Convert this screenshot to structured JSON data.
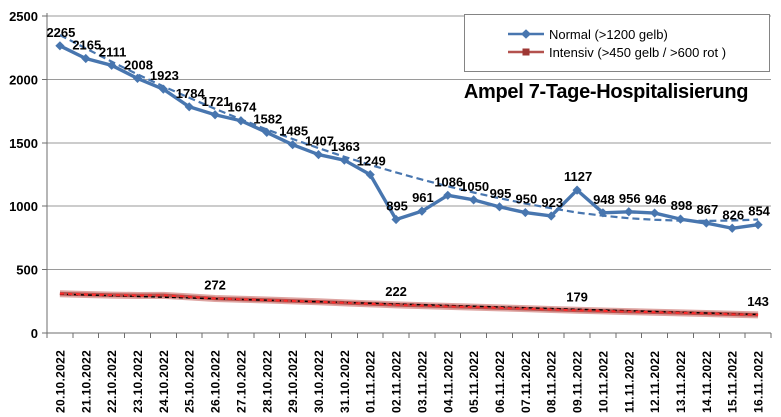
{
  "title": "Ampel 7-Tage-Hospitalisierung",
  "legend": {
    "items": [
      {
        "label": "Normal (>1200 gelb)"
      },
      {
        "label": "Intensiv (>450 gelb / >600 rot )"
      }
    ]
  },
  "chart_data": {
    "type": "line",
    "title": "Ampel 7-Tage-Hospitalisierung",
    "grid": true,
    "legend_position": "top-right",
    "ylim": [
      0,
      2500
    ],
    "ytick_interval": 500,
    "ytick_labels": [
      "0",
      "500",
      "1000",
      "1500",
      "2000",
      "2500"
    ],
    "categories": [
      "20.10.2022",
      "21.10.2022",
      "22.10.2022",
      "23.10.2022",
      "24.10.2022",
      "25.10.2022",
      "26.10.2022",
      "27.10.2022",
      "28.10.2022",
      "29.10.2022",
      "30.10.2022",
      "31.10.2022",
      "01.11.2022",
      "02.11.2022",
      "03.11.2022",
      "04.11.2022",
      "05.11.2022",
      "06.11.2022",
      "07.11.2022",
      "08.11.2022",
      "09.11.2022",
      "10.11.2022",
      "11.11.2022",
      "12.11.2022",
      "13.11.2022",
      "14.11.2022",
      "15.11.2022",
      "16.11.2022"
    ],
    "series": [
      {
        "name": "Normal (>1200 gelb)",
        "color": "#4876AF",
        "marker": "diamond",
        "marker_color": "#4876AF",
        "values": [
          2265,
          2165,
          2111,
          2008,
          1923,
          1784,
          1721,
          1674,
          1582,
          1485,
          1407,
          1363,
          1249,
          895,
          961,
          1086,
          1050,
          995,
          950,
          923,
          1127,
          948,
          956,
          946,
          898,
          867,
          826,
          854
        ],
        "point_labels": [
          2265,
          2165,
          2111,
          2008,
          1923,
          1784,
          1721,
          1674,
          1582,
          1485,
          1407,
          1363,
          1249,
          895,
          961,
          1086,
          1050,
          995,
          950,
          923,
          1127,
          948,
          956,
          946,
          898,
          867,
          826,
          854
        ]
      },
      {
        "name": "Intensiv (>450 gelb / >600 rot )",
        "color": "#B4524E",
        "marker": "square",
        "marker_color": "#9E3734",
        "values_note": "only 4 values labeled in chart; unlabeled values estimated from pixels",
        "values": [
          310,
          304,
          299,
          296,
          297,
          285,
          272,
          266,
          260,
          253,
          246,
          238,
          230,
          222,
          216,
          210,
          204,
          198,
          192,
          185,
          179,
          174,
          169,
          164,
          159,
          154,
          148,
          143
        ],
        "point_labels": [
          null,
          null,
          null,
          null,
          null,
          null,
          272,
          null,
          null,
          null,
          null,
          null,
          null,
          222,
          null,
          null,
          null,
          null,
          null,
          null,
          179,
          null,
          null,
          null,
          null,
          null,
          null,
          143
        ]
      }
    ],
    "trendlines": [
      {
        "for_series": "Normal (>1200 gelb)",
        "style": "dashed",
        "color": "#4876AF",
        "values": [
          2350,
          2245,
          2140,
          2040,
          1945,
          1855,
          1768,
          1685,
          1605,
          1530,
          1458,
          1390,
          1326,
          1266,
          1210,
          1157,
          1108,
          1063,
          1021,
          984,
          950,
          925,
          905,
          893,
          886,
          884,
          887,
          895
        ]
      },
      {
        "for_series": "Intensiv (>450 gelb / >600 rot )",
        "style": "dashed",
        "color": "#000000",
        "values": [
          306,
          146
        ],
        "shape": "linear"
      }
    ]
  }
}
